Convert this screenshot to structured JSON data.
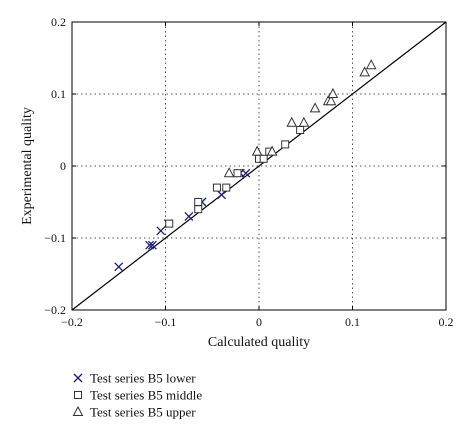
{
  "chart_data": {
    "type": "scatter",
    "xlabel": "Calculated quality",
    "ylabel": "Experimental quality",
    "xlim": [
      -0.2,
      0.2
    ],
    "ylim": [
      -0.2,
      0.2
    ],
    "xticks": [
      "−0.2",
      "−0.1",
      "0",
      "0.1",
      "0.2"
    ],
    "yticks": [
      "−0.2",
      "−0.1",
      "0",
      "0.1",
      "0.2"
    ],
    "xtick_values": [
      -0.2,
      -0.1,
      0,
      0.1,
      0.2
    ],
    "ytick_values": [
      -0.2,
      -0.1,
      0,
      0.1,
      0.2
    ],
    "grid": true,
    "reference_line": {
      "from": [
        -0.2,
        -0.2
      ],
      "to": [
        0.2,
        0.2
      ]
    },
    "legend_position": "bottom-left outside",
    "series": [
      {
        "name": "Test series B5 lower",
        "marker": "x",
        "color": "#1a1a8c",
        "points": [
          [
            -0.15,
            -0.14
          ],
          [
            -0.117,
            -0.11
          ],
          [
            -0.114,
            -0.11
          ],
          [
            -0.105,
            -0.09
          ],
          [
            -0.097,
            -0.08
          ],
          [
            -0.075,
            -0.07
          ],
          [
            -0.061,
            -0.05
          ],
          [
            -0.04,
            -0.04
          ],
          [
            -0.02,
            -0.01
          ],
          [
            -0.014,
            -0.01
          ]
        ]
      },
      {
        "name": "Test series B5 middle",
        "marker": "square",
        "color": "#333333",
        "points": [
          [
            -0.096,
            -0.08
          ],
          [
            -0.065,
            -0.05
          ],
          [
            -0.065,
            -0.06
          ],
          [
            -0.045,
            -0.03
          ],
          [
            -0.035,
            -0.03
          ],
          [
            -0.023,
            -0.01
          ],
          [
            0.0,
            0.01
          ],
          [
            0.005,
            0.01
          ],
          [
            0.011,
            0.02
          ],
          [
            0.028,
            0.03
          ],
          [
            0.044,
            0.05
          ]
        ]
      },
      {
        "name": "Test series B5 upper",
        "marker": "triangle",
        "color": "#333333",
        "points": [
          [
            -0.032,
            -0.01
          ],
          [
            -0.002,
            0.02
          ],
          [
            0.014,
            0.02
          ],
          [
            0.035,
            0.06
          ],
          [
            0.048,
            0.06
          ],
          [
            0.06,
            0.08
          ],
          [
            0.074,
            0.09
          ],
          [
            0.077,
            0.09
          ],
          [
            0.079,
            0.1
          ],
          [
            0.113,
            0.13
          ],
          [
            0.12,
            0.14
          ]
        ]
      }
    ]
  }
}
